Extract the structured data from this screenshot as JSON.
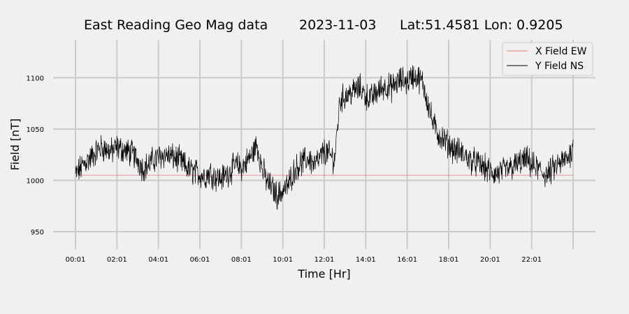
{
  "chart_data": {
    "type": "line",
    "title": "East Reading Geo Mag data",
    "date": "2023-11-03",
    "location": "Lat:51.4581  Lon: 0.9205",
    "xlabel": "Time  [Hr]",
    "ylabel": "Field  [nT]",
    "x_ticks": [
      "00:01",
      "02:01",
      "04:01",
      "06:01",
      "08:01",
      "10:01",
      "12:01",
      "14:01",
      "16:01",
      "18:01",
      "20:01",
      "22:01"
    ],
    "x_range_hours": [
      0,
      24
    ],
    "y_ticks": [
      950,
      1000,
      1050,
      1100
    ],
    "ylim": [
      933,
      1137
    ],
    "grid": true,
    "legend_position": "top-right",
    "series": [
      {
        "name": "X Field EW",
        "color": "#e0787a",
        "x_hours": [
          0,
          24
        ],
        "values": [
          1005,
          1005
        ]
      },
      {
        "name": "Y Field NS",
        "color": "#000000",
        "x_hours": [
          0,
          0.25,
          0.5,
          0.75,
          1,
          1.25,
          1.5,
          1.75,
          2,
          2.25,
          2.5,
          2.75,
          3,
          3.25,
          3.5,
          3.75,
          4,
          4.25,
          4.5,
          4.75,
          5,
          5.25,
          5.5,
          5.75,
          6,
          6.25,
          6.5,
          6.75,
          7,
          7.25,
          7.5,
          7.75,
          8,
          8.25,
          8.5,
          8.75,
          9,
          9.25,
          9.5,
          9.75,
          10,
          10.25,
          10.5,
          10.75,
          11,
          11.25,
          11.5,
          11.75,
          12,
          12.25,
          12.5,
          12.75,
          13,
          13.25,
          13.5,
          13.75,
          14,
          14.25,
          14.5,
          14.75,
          15,
          15.25,
          15.5,
          15.75,
          16,
          16.25,
          16.5,
          16.75,
          17,
          17.25,
          17.5,
          17.75,
          18,
          18.25,
          18.5,
          18.75,
          19,
          19.25,
          19.5,
          19.75,
          20,
          20.25,
          20.5,
          20.75,
          21,
          21.25,
          21.5,
          21.75,
          22,
          22.25,
          22.5,
          22.75,
          23,
          23.25,
          23.5,
          23.75,
          24
        ],
        "values": [
          1005,
          1012,
          1018,
          1022,
          1028,
          1032,
          1030,
          1028,
          1032,
          1030,
          1028,
          1026,
          1020,
          1012,
          1015,
          1020,
          1022,
          1025,
          1024,
          1022,
          1020,
          1015,
          1010,
          1008,
          1006,
          1004,
          1008,
          1003,
          1002,
          1005,
          1010,
          1015,
          1012,
          1018,
          1025,
          1035,
          1012,
          998,
          992,
          985,
          990,
          995,
          1008,
          1015,
          1018,
          1022,
          1015,
          1020,
          1028,
          1025,
          1020,
          1078,
          1082,
          1085,
          1088,
          1090,
          1082,
          1080,
          1085,
          1090,
          1092,
          1090,
          1095,
          1098,
          1096,
          1102,
          1100,
          1095,
          1075,
          1055,
          1045,
          1040,
          1035,
          1030,
          1028,
          1025,
          1020,
          1018,
          1015,
          1012,
          1008,
          1006,
          1008,
          1010,
          1012,
          1015,
          1018,
          1020,
          1015,
          1012,
          1008,
          1005,
          1010,
          1015,
          1018,
          1022,
          1032
        ]
      }
    ]
  }
}
